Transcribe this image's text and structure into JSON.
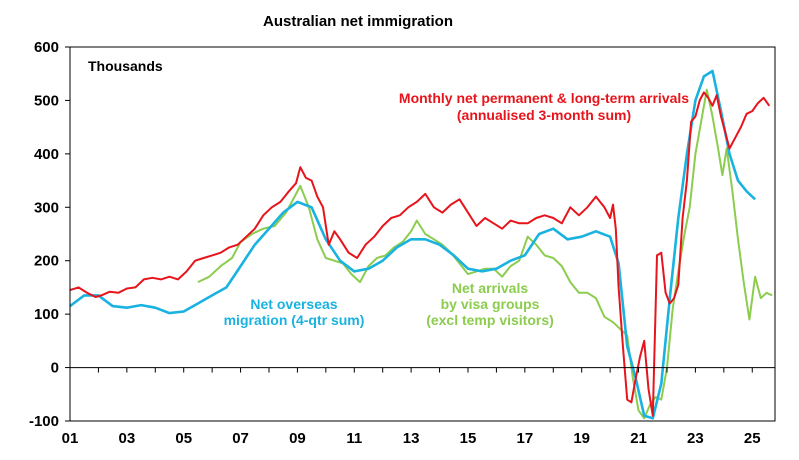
{
  "chart_data": {
    "type": "line",
    "title": "Australian net immigration",
    "ylabel": "Thousands",
    "ylim": [
      -100,
      600
    ],
    "yticks": [
      -100,
      0,
      100,
      200,
      300,
      400,
      500,
      600
    ],
    "xlim": [
      2001,
      2025.8
    ],
    "xticks": [
      {
        "label": "01",
        "value": 2001
      },
      {
        "label": "03",
        "value": 2003
      },
      {
        "label": "05",
        "value": 2005
      },
      {
        "label": "07",
        "value": 2007
      },
      {
        "label": "09",
        "value": 2009
      },
      {
        "label": "11",
        "value": 2011
      },
      {
        "label": "13",
        "value": 2013
      },
      {
        "label": "15",
        "value": 2015
      },
      {
        "label": "17",
        "value": 2017
      },
      {
        "label": "19",
        "value": 2019
      },
      {
        "label": "21",
        "value": 2021
      },
      {
        "label": "23",
        "value": 2023
      },
      {
        "label": "25",
        "value": 2025
      }
    ],
    "series": [
      {
        "name": "Monthly net permanent & long-term arrivals (annualised 3-month sum)",
        "label_lines": [
          "Monthly net permanent & long-term arrivals",
          "(annualised 3-month sum)"
        ],
        "color": "#e8141b",
        "x": [
          2001.0,
          2001.3,
          2001.6,
          2001.9,
          2002.1,
          2002.4,
          2002.7,
          2003.0,
          2003.3,
          2003.6,
          2003.9,
          2004.2,
          2004.5,
          2004.8,
          2005.1,
          2005.4,
          2005.7,
          2006.0,
          2006.3,
          2006.6,
          2006.9,
          2007.2,
          2007.5,
          2007.8,
          2008.1,
          2008.4,
          2008.7,
          2008.95,
          2009.1,
          2009.3,
          2009.5,
          2009.7,
          2009.9,
          2010.1,
          2010.3,
          2010.5,
          2010.8,
          2011.1,
          2011.4,
          2011.7,
          2012.0,
          2012.3,
          2012.6,
          2012.9,
          2013.2,
          2013.5,
          2013.8,
          2014.1,
          2014.4,
          2014.7,
          2015.0,
          2015.3,
          2015.6,
          2015.9,
          2016.2,
          2016.5,
          2016.8,
          2017.1,
          2017.4,
          2017.7,
          2018.0,
          2018.3,
          2018.6,
          2018.9,
          2019.2,
          2019.5,
          2019.8,
          2020.0,
          2020.1,
          2020.2,
          2020.3,
          2020.45,
          2020.6,
          2020.75,
          2020.9,
          2021.05,
          2021.2,
          2021.35,
          2021.5,
          2021.65,
          2021.8,
          2021.95,
          2022.1,
          2022.25,
          2022.4,
          2022.55,
          2022.7,
          2022.85,
          2023.0,
          2023.15,
          2023.3,
          2023.45,
          2023.6,
          2023.75,
          2023.9,
          2024.05,
          2024.2,
          2024.4,
          2024.6,
          2024.8,
          2025.0,
          2025.2,
          2025.4,
          2025.6
        ],
        "values": [
          145,
          150,
          140,
          132,
          135,
          142,
          140,
          148,
          150,
          165,
          168,
          165,
          170,
          165,
          180,
          200,
          205,
          210,
          215,
          225,
          230,
          245,
          260,
          285,
          300,
          310,
          330,
          345,
          375,
          355,
          350,
          320,
          300,
          230,
          255,
          240,
          215,
          205,
          230,
          245,
          265,
          280,
          285,
          300,
          310,
          325,
          300,
          290,
          305,
          315,
          290,
          265,
          280,
          270,
          260,
          275,
          270,
          270,
          280,
          285,
          280,
          270,
          300,
          285,
          300,
          320,
          300,
          280,
          305,
          260,
          150,
          40,
          -60,
          -65,
          -20,
          20,
          50,
          -40,
          -90,
          210,
          215,
          140,
          120,
          130,
          155,
          280,
          350,
          460,
          470,
          500,
          515,
          505,
          490,
          510,
          470,
          440,
          410,
          430,
          450,
          475,
          480,
          495,
          505,
          490
        ]
      },
      {
        "name": "Net overseas migration (4-qtr sum)",
        "label_lines": [
          "Net overseas",
          "migration (4-qtr sum)"
        ],
        "color": "#1ab2e0",
        "x": [
          2001.0,
          2001.5,
          2002.0,
          2002.5,
          2003.0,
          2003.5,
          2004.0,
          2004.5,
          2005.0,
          2005.5,
          2006.0,
          2006.5,
          2007.0,
          2007.5,
          2008.0,
          2008.5,
          2009.0,
          2009.5,
          2010.0,
          2010.5,
          2011.0,
          2011.5,
          2012.0,
          2012.5,
          2013.0,
          2013.5,
          2014.0,
          2014.5,
          2015.0,
          2015.5,
          2016.0,
          2016.5,
          2017.0,
          2017.5,
          2018.0,
          2018.5,
          2019.0,
          2019.5,
          2020.0,
          2020.3,
          2020.6,
          2020.9,
          2021.2,
          2021.5,
          2021.8,
          2022.1,
          2022.4,
          2022.7,
          2023.0,
          2023.3,
          2023.6,
          2023.9,
          2024.2,
          2024.5,
          2024.8,
          2025.1
        ],
        "values": [
          115,
          135,
          135,
          115,
          112,
          117,
          112,
          102,
          105,
          120,
          135,
          150,
          190,
          230,
          260,
          290,
          310,
          300,
          240,
          200,
          180,
          185,
          200,
          225,
          240,
          240,
          230,
          210,
          185,
          180,
          185,
          200,
          210,
          250,
          260,
          240,
          245,
          255,
          245,
          195,
          40,
          -20,
          -90,
          -95,
          -30,
          130,
          280,
          400,
          500,
          545,
          555,
          480,
          400,
          350,
          330,
          315
        ]
      },
      {
        "name": "Net arrivals by visa groups (excl temp visitors)",
        "label_lines": [
          "Net arrivals",
          "by visa groups",
          "(excl temp visitors)"
        ],
        "color": "#8ccc4e",
        "x": [
          2005.5,
          2005.9,
          2006.3,
          2006.7,
          2007.0,
          2007.4,
          2007.8,
          2008.2,
          2008.6,
          2008.9,
          2009.1,
          2009.4,
          2009.7,
          2010.0,
          2010.3,
          2010.6,
          2010.9,
          2011.2,
          2011.5,
          2011.8,
          2012.1,
          2012.4,
          2012.7,
          2013.0,
          2013.2,
          2013.5,
          2013.8,
          2014.1,
          2014.4,
          2014.7,
          2015.0,
          2015.3,
          2015.6,
          2015.9,
          2016.2,
          2016.5,
          2016.8,
          2017.1,
          2017.4,
          2017.7,
          2018.0,
          2018.3,
          2018.6,
          2018.9,
          2019.2,
          2019.5,
          2019.8,
          2020.1,
          2020.4,
          2020.6,
          2020.8,
          2021.0,
          2021.2,
          2021.4,
          2021.6,
          2021.8,
          2022.0,
          2022.2,
          2022.4,
          2022.6,
          2022.8,
          2023.0,
          2023.2,
          2023.4,
          2023.6,
          2023.8,
          2023.95,
          2024.1,
          2024.3,
          2024.5,
          2024.7,
          2024.9,
          2025.1,
          2025.3,
          2025.5,
          2025.7
        ],
        "values": [
          160,
          170,
          190,
          205,
          235,
          250,
          260,
          265,
          290,
          320,
          340,
          300,
          240,
          205,
          200,
          195,
          175,
          160,
          190,
          205,
          210,
          225,
          235,
          255,
          275,
          250,
          240,
          230,
          215,
          195,
          175,
          180,
          185,
          185,
          170,
          190,
          200,
          245,
          230,
          210,
          205,
          190,
          160,
          140,
          140,
          130,
          95,
          85,
          70,
          60,
          -20,
          -80,
          -95,
          -70,
          -55,
          -60,
          0,
          110,
          180,
          245,
          300,
          400,
          460,
          520,
          470,
          410,
          360,
          410,
          330,
          240,
          160,
          90,
          170,
          130,
          140,
          135
        ]
      }
    ]
  }
}
